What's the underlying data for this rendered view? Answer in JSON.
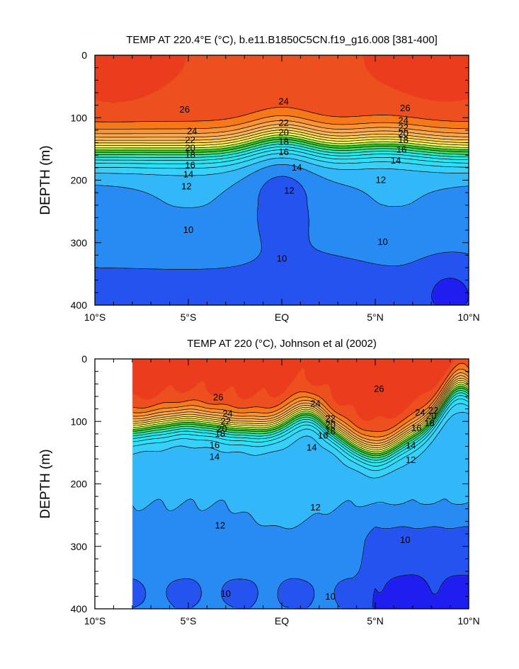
{
  "chart_data": [
    {
      "type": "contour",
      "title": "TEMP AT 220.4°E (°C), b.e11.B1850C5CN.f19_g16.008 [381-400]",
      "ylabel": "DEPTH (m)",
      "xlabel": "",
      "x_range": [
        -10,
        10
      ],
      "y_range": [
        0,
        400
      ],
      "y_reversed": true,
      "x_ticks": [
        {
          "value": -10,
          "label": "10°S"
        },
        {
          "value": -5,
          "label": "5°S"
        },
        {
          "value": 0,
          "label": "EQ"
        },
        {
          "value": 5,
          "label": "5°N"
        },
        {
          "value": 10,
          "label": "10°N"
        }
      ],
      "y_ticks": [
        {
          "value": 0,
          "label": "0"
        },
        {
          "value": 100,
          "label": "100"
        },
        {
          "value": 200,
          "label": "200"
        },
        {
          "value": 300,
          "label": "300"
        },
        {
          "value": 400,
          "label": "400"
        }
      ],
      "contour_interval": 1,
      "levels": [
        9,
        10,
        11,
        12,
        13,
        14,
        15,
        16,
        17,
        18,
        19,
        20,
        21,
        22,
        23,
        24,
        25,
        26,
        27
      ],
      "contour_labels": [
        {
          "x": -5.2,
          "y": 87,
          "text": "26"
        },
        {
          "x": -4.8,
          "y": 122,
          "text": "24"
        },
        {
          "x": -4.9,
          "y": 136,
          "text": "22"
        },
        {
          "x": -4.9,
          "y": 149,
          "text": "20"
        },
        {
          "x": -4.9,
          "y": 160,
          "text": "18"
        },
        {
          "x": -4.9,
          "y": 176,
          "text": "16"
        },
        {
          "x": -5.0,
          "y": 191,
          "text": "14"
        },
        {
          "x": -5.1,
          "y": 210,
          "text": "12"
        },
        {
          "x": -5.0,
          "y": 280,
          "text": "10"
        },
        {
          "x": 0.1,
          "y": 74,
          "text": "24"
        },
        {
          "x": 0.1,
          "y": 109,
          "text": "22"
        },
        {
          "x": 0.1,
          "y": 124,
          "text": "20"
        },
        {
          "x": 0.1,
          "y": 139,
          "text": "18"
        },
        {
          "x": 0.1,
          "y": 155,
          "text": "16"
        },
        {
          "x": 0.8,
          "y": 180,
          "text": "14"
        },
        {
          "x": 0.4,
          "y": 217,
          "text": "12"
        },
        {
          "x": 0.0,
          "y": 326,
          "text": "10"
        },
        {
          "x": 6.6,
          "y": 85,
          "text": "26"
        },
        {
          "x": 6.5,
          "y": 105,
          "text": "24"
        },
        {
          "x": 6.5,
          "y": 116,
          "text": "22"
        },
        {
          "x": 6.5,
          "y": 126,
          "text": "20"
        },
        {
          "x": 6.5,
          "y": 136,
          "text": "18"
        },
        {
          "x": 6.4,
          "y": 151,
          "text": "16"
        },
        {
          "x": 6.1,
          "y": 169,
          "text": "14"
        },
        {
          "x": 5.3,
          "y": 200,
          "text": "12"
        },
        {
          "x": 5.4,
          "y": 299,
          "text": "10"
        }
      ]
    },
    {
      "type": "contour",
      "title": "TEMP AT 220 (°C), Johnson et al (2002)",
      "ylabel": "DEPTH (m)",
      "xlabel": "",
      "x_range": [
        -10,
        10
      ],
      "y_range": [
        0,
        400
      ],
      "y_reversed": true,
      "data_x_start": -8,
      "x_ticks": [
        {
          "value": -10,
          "label": "10°S"
        },
        {
          "value": -5,
          "label": "5°S"
        },
        {
          "value": 0,
          "label": "EQ"
        },
        {
          "value": 5,
          "label": "5°N"
        },
        {
          "value": 10,
          "label": "10°N"
        }
      ],
      "y_ticks": [
        {
          "value": 0,
          "label": "0"
        },
        {
          "value": 100,
          "label": "100"
        },
        {
          "value": 200,
          "label": "200"
        },
        {
          "value": 300,
          "label": "300"
        },
        {
          "value": 400,
          "label": "400"
        }
      ],
      "contour_interval": 1,
      "levels": [
        9,
        10,
        11,
        12,
        13,
        14,
        15,
        16,
        17,
        18,
        19,
        20,
        21,
        22,
        23,
        24,
        25,
        26,
        27
      ],
      "contour_labels": [
        {
          "x": -3.4,
          "y": 62,
          "text": "26"
        },
        {
          "x": -2.9,
          "y": 88,
          "text": "24"
        },
        {
          "x": -3.0,
          "y": 100,
          "text": "22"
        },
        {
          "x": -3.2,
          "y": 112,
          "text": "20"
        },
        {
          "x": -3.3,
          "y": 120,
          "text": "18"
        },
        {
          "x": -3.6,
          "y": 138,
          "text": "16"
        },
        {
          "x": -3.6,
          "y": 157,
          "text": "14"
        },
        {
          "x": -3.3,
          "y": 267,
          "text": "12"
        },
        {
          "x": -3.0,
          "y": 376,
          "text": "10"
        },
        {
          "x": 1.8,
          "y": 72,
          "text": "24"
        },
        {
          "x": 2.6,
          "y": 96,
          "text": "22"
        },
        {
          "x": 2.6,
          "y": 106,
          "text": "20"
        },
        {
          "x": 2.6,
          "y": 116,
          "text": "18"
        },
        {
          "x": 2.2,
          "y": 123,
          "text": "16"
        },
        {
          "x": 1.6,
          "y": 142,
          "text": "14"
        },
        {
          "x": 1.8,
          "y": 238,
          "text": "12"
        },
        {
          "x": 2.6,
          "y": 381,
          "text": "10"
        },
        {
          "x": 5.2,
          "y": 48,
          "text": "26"
        },
        {
          "x": 7.4,
          "y": 86,
          "text": "24"
        },
        {
          "x": 8.1,
          "y": 83,
          "text": "22"
        },
        {
          "x": 8.0,
          "y": 92,
          "text": "20"
        },
        {
          "x": 7.9,
          "y": 103,
          "text": "18"
        },
        {
          "x": 7.2,
          "y": 111,
          "text": "16"
        },
        {
          "x": 6.9,
          "y": 139,
          "text": "14"
        },
        {
          "x": 6.9,
          "y": 162,
          "text": "12"
        },
        {
          "x": 6.6,
          "y": 290,
          "text": "10"
        }
      ]
    }
  ]
}
